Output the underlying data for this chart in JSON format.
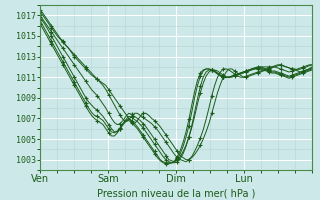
{
  "title": "",
  "xlabel": "Pression niveau de la mer( hPa )",
  "ylabel": "",
  "bg_color": "#cce8e8",
  "grid_color": "#b8d8d8",
  "line_color": "#1a5c1a",
  "marker_color": "#1a5c1a",
  "ylim": [
    1002.0,
    1018.0
  ],
  "yticks": [
    1003,
    1005,
    1007,
    1009,
    1011,
    1013,
    1015,
    1017
  ],
  "xtick_labels": [
    "Ven",
    "Sam",
    "Dim",
    "Lun"
  ],
  "xtick_positions": [
    0,
    24,
    48,
    72
  ],
  "xlim": [
    0,
    96
  ],
  "series": [
    [
      1017.5,
      1017.2,
      1016.8,
      1016.4,
      1016.0,
      1015.6,
      1015.2,
      1014.8,
      1014.5,
      1014.1,
      1013.8,
      1013.4,
      1013.0,
      1012.7,
      1012.4,
      1012.1,
      1011.8,
      1011.5,
      1011.2,
      1011.0,
      1010.8,
      1010.6,
      1010.4,
      1010.2,
      1009.8,
      1009.4,
      1009.0,
      1008.6,
      1008.2,
      1007.8,
      1007.4,
      1007.0,
      1006.7,
      1006.5,
      1006.8,
      1007.2,
      1007.5,
      1007.5,
      1007.3,
      1007.0,
      1006.8,
      1006.5,
      1006.2,
      1005.8,
      1005.4,
      1005.0,
      1004.6,
      1004.2,
      1003.8,
      1003.4,
      1003.2,
      1003.0,
      1003.0,
      1003.2,
      1003.5,
      1003.9,
      1004.4,
      1005.0,
      1005.7,
      1006.5,
      1007.5,
      1008.5,
      1009.5,
      1010.3,
      1011.0,
      1011.5,
      1011.8,
      1011.8,
      1011.6,
      1011.4,
      1011.2,
      1011.0,
      1011.0,
      1011.1,
      1011.2,
      1011.3,
      1011.4,
      1011.5,
      1011.6,
      1011.7,
      1011.8,
      1011.9,
      1012.0,
      1012.1,
      1012.2,
      1012.1,
      1012.0,
      1011.9,
      1011.8,
      1011.7,
      1011.6,
      1011.5,
      1011.6,
      1011.7,
      1011.8,
      1012.0
    ],
    [
      1017.3,
      1017.0,
      1016.6,
      1016.2,
      1015.8,
      1015.4,
      1015.0,
      1014.7,
      1014.4,
      1014.1,
      1013.8,
      1013.5,
      1013.2,
      1012.9,
      1012.6,
      1012.3,
      1012.0,
      1011.7,
      1011.4,
      1011.1,
      1010.8,
      1010.5,
      1010.2,
      1009.8,
      1009.3,
      1008.8,
      1008.3,
      1007.8,
      1007.3,
      1006.9,
      1006.7,
      1006.9,
      1007.2,
      1007.5,
      1007.5,
      1007.3,
      1007.1,
      1006.9,
      1006.7,
      1006.5,
      1006.2,
      1005.9,
      1005.5,
      1005.1,
      1004.7,
      1004.3,
      1003.9,
      1003.5,
      1003.2,
      1003.0,
      1002.9,
      1002.8,
      1003.0,
      1003.3,
      1003.8,
      1004.4,
      1005.1,
      1005.9,
      1006.9,
      1008.0,
      1009.2,
      1010.2,
      1011.0,
      1011.5,
      1011.8,
      1011.8,
      1011.7,
      1011.5,
      1011.3,
      1011.1,
      1011.0,
      1011.0,
      1011.1,
      1011.2,
      1011.3,
      1011.4,
      1011.5,
      1011.6,
      1011.7,
      1011.8,
      1011.9,
      1012.0,
      1012.1,
      1012.2,
      1012.2,
      1012.1,
      1012.0,
      1011.9,
      1011.8,
      1011.8,
      1011.7,
      1011.8,
      1011.9,
      1012.0,
      1012.1,
      1012.2
    ],
    [
      1017.0,
      1016.6,
      1016.2,
      1015.8,
      1015.4,
      1015.0,
      1014.6,
      1014.2,
      1013.8,
      1013.4,
      1013.0,
      1012.6,
      1012.2,
      1011.8,
      1011.4,
      1011.0,
      1010.6,
      1010.2,
      1009.8,
      1009.5,
      1009.2,
      1008.8,
      1008.4,
      1008.0,
      1007.5,
      1007.0,
      1006.6,
      1006.4,
      1006.5,
      1006.8,
      1007.2,
      1007.5,
      1007.4,
      1007.2,
      1007.0,
      1006.8,
      1006.5,
      1006.2,
      1005.8,
      1005.4,
      1005.0,
      1004.6,
      1004.2,
      1003.8,
      1003.4,
      1003.0,
      1002.9,
      1002.8,
      1003.0,
      1003.3,
      1003.8,
      1004.4,
      1005.2,
      1006.1,
      1007.2,
      1008.4,
      1009.5,
      1010.4,
      1011.1,
      1011.5,
      1011.7,
      1011.7,
      1011.6,
      1011.4,
      1011.2,
      1011.0,
      1011.0,
      1011.0,
      1011.1,
      1011.2,
      1011.3,
      1011.4,
      1011.5,
      1011.6,
      1011.7,
      1011.8,
      1011.9,
      1012.0,
      1012.0,
      1012.0,
      1012.0,
      1012.0,
      1012.0,
      1011.9,
      1011.8,
      1011.7,
      1011.6,
      1011.5,
      1011.6,
      1011.7,
      1011.8,
      1011.9,
      1012.0,
      1012.1,
      1012.2,
      1012.2
    ],
    [
      1016.8,
      1016.4,
      1016.0,
      1015.5,
      1015.0,
      1014.5,
      1014.0,
      1013.5,
      1013.0,
      1012.5,
      1012.0,
      1011.5,
      1011.0,
      1010.5,
      1010.0,
      1009.5,
      1009.0,
      1008.6,
      1008.3,
      1008.0,
      1007.8,
      1007.5,
      1007.2,
      1006.8,
      1006.4,
      1006.0,
      1005.7,
      1005.7,
      1006.0,
      1006.5,
      1006.9,
      1007.2,
      1007.1,
      1006.9,
      1006.7,
      1006.4,
      1006.1,
      1005.7,
      1005.3,
      1004.9,
      1004.5,
      1004.1,
      1003.7,
      1003.3,
      1003.0,
      1002.8,
      1002.7,
      1002.7,
      1002.8,
      1003.1,
      1003.6,
      1004.3,
      1005.2,
      1006.3,
      1007.6,
      1008.9,
      1010.1,
      1011.0,
      1011.5,
      1011.7,
      1011.7,
      1011.6,
      1011.4,
      1011.2,
      1011.0,
      1011.0,
      1011.0,
      1011.1,
      1011.2,
      1011.3,
      1011.4,
      1011.5,
      1011.6,
      1011.7,
      1011.8,
      1011.9,
      1012.0,
      1012.0,
      1011.9,
      1011.8,
      1011.7,
      1011.6,
      1011.6,
      1011.5,
      1011.4,
      1011.3,
      1011.2,
      1011.1,
      1011.2,
      1011.3,
      1011.4,
      1011.5,
      1011.6,
      1011.7,
      1011.8,
      1011.9
    ],
    [
      1016.5,
      1016.0,
      1015.5,
      1015.0,
      1014.5,
      1014.0,
      1013.5,
      1013.0,
      1012.5,
      1012.0,
      1011.5,
      1011.0,
      1010.5,
      1010.0,
      1009.5,
      1009.0,
      1008.5,
      1008.0,
      1007.6,
      1007.3,
      1007.2,
      1007.0,
      1006.8,
      1006.4,
      1006.0,
      1005.7,
      1005.6,
      1005.8,
      1006.1,
      1006.5,
      1006.8,
      1007.0,
      1006.8,
      1006.5,
      1006.2,
      1005.8,
      1005.4,
      1005.0,
      1004.6,
      1004.2,
      1003.8,
      1003.4,
      1003.0,
      1002.8,
      1002.7,
      1002.7,
      1002.7,
      1002.8,
      1003.1,
      1003.6,
      1004.3,
      1005.2,
      1006.3,
      1007.6,
      1009.0,
      1010.2,
      1011.1,
      1011.6,
      1011.8,
      1011.8,
      1011.7,
      1011.6,
      1011.4,
      1011.2,
      1011.0,
      1011.0,
      1011.0,
      1011.1,
      1011.2,
      1011.3,
      1011.4,
      1011.5,
      1011.6,
      1011.7,
      1011.8,
      1011.9,
      1011.9,
      1011.9,
      1011.8,
      1011.7,
      1011.6,
      1011.5,
      1011.5,
      1011.4,
      1011.3,
      1011.2,
      1011.1,
      1011.0,
      1011.1,
      1011.2,
      1011.3,
      1011.4,
      1011.5,
      1011.6,
      1011.7,
      1011.8
    ],
    [
      1016.2,
      1015.7,
      1015.2,
      1014.7,
      1014.2,
      1013.7,
      1013.2,
      1012.7,
      1012.2,
      1011.7,
      1011.2,
      1010.7,
      1010.2,
      1009.7,
      1009.2,
      1008.7,
      1008.2,
      1007.7,
      1007.3,
      1007.0,
      1006.8,
      1006.6,
      1006.4,
      1006.0,
      1005.6,
      1005.3,
      1005.3,
      1005.6,
      1006.0,
      1006.4,
      1006.7,
      1006.8,
      1006.6,
      1006.3,
      1006.0,
      1005.6,
      1005.2,
      1004.8,
      1004.4,
      1004.0,
      1003.6,
      1003.2,
      1002.9,
      1002.7,
      1002.6,
      1002.6,
      1002.7,
      1002.9,
      1003.3,
      1003.9,
      1004.7,
      1005.7,
      1006.9,
      1008.3,
      1009.6,
      1010.7,
      1011.4,
      1011.7,
      1011.8,
      1011.8,
      1011.7,
      1011.5,
      1011.3,
      1011.1,
      1011.0,
      1011.0,
      1011.0,
      1011.1,
      1011.2,
      1011.3,
      1011.4,
      1011.5,
      1011.6,
      1011.7,
      1011.8,
      1011.8,
      1011.8,
      1011.8,
      1011.7,
      1011.6,
      1011.5,
      1011.4,
      1011.4,
      1011.3,
      1011.2,
      1011.1,
      1011.0,
      1010.9,
      1011.0,
      1011.1,
      1011.2,
      1011.3,
      1011.4,
      1011.5,
      1011.6,
      1011.7
    ]
  ]
}
